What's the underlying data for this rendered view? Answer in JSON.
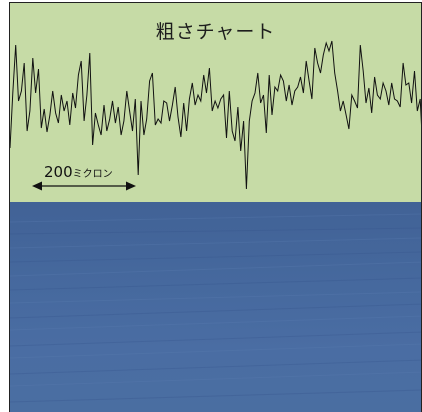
{
  "chart_title": "粗さチャート",
  "scale_bar": {
    "value": "200",
    "unit": "ミクロン"
  },
  "colors": {
    "chart_background": "#c6dba6",
    "surface": "#46699e",
    "line": "#111111"
  },
  "profile_trace": [
    145,
    90,
    42,
    98,
    88,
    60,
    128,
    108,
    55,
    90,
    66,
    125,
    106,
    129,
    112,
    88,
    110,
    120,
    92,
    108,
    98,
    122,
    90,
    105,
    72,
    58,
    118,
    92,
    50,
    142,
    110,
    122,
    132,
    102,
    128,
    116,
    98,
    120,
    104,
    132,
    118,
    88,
    108,
    128,
    96,
    172,
    98,
    132,
    116,
    78,
    70,
    122,
    116,
    120,
    98,
    100,
    118,
    102,
    84,
    114,
    134,
    100,
    128,
    96,
    80,
    102,
    92,
    98,
    72,
    90,
    65,
    108,
    98,
    105,
    96,
    92,
    135,
    88,
    128,
    138,
    104,
    148,
    118,
    186,
    118,
    98,
    90,
    70,
    100,
    92,
    130,
    72,
    112,
    84,
    88,
    72,
    78,
    98,
    82,
    102,
    88,
    84,
    74,
    90,
    58,
    78,
    96,
    45,
    60,
    70,
    52,
    40,
    48,
    38,
    70,
    88,
    108,
    98,
    112,
    126,
    92,
    98,
    105,
    42,
    68,
    100,
    85,
    110,
    74,
    92,
    96,
    80,
    88,
    102,
    80,
    96,
    98,
    104,
    60,
    82,
    80,
    100,
    68,
    108,
    96,
    152
  ]
}
